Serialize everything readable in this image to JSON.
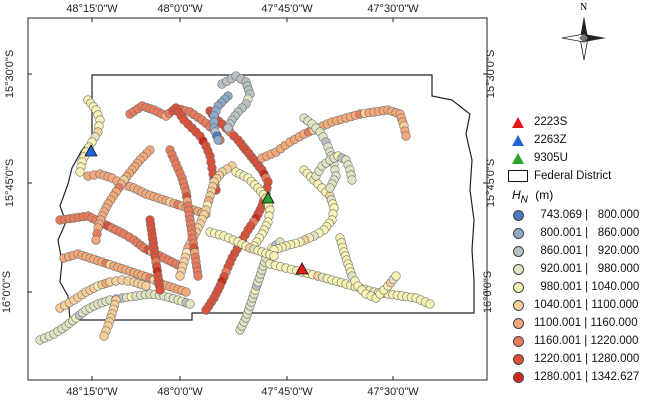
{
  "axes": {
    "top_labels": [
      "48°15'0\"W",
      "48°0'0\"W",
      "47°45'0\"W",
      "47°30'0\"W"
    ],
    "bottom_labels": [
      "48°15'0\"W",
      "48°0'0\"W",
      "47°45'0\"W",
      "47°30'0\"W"
    ],
    "left_labels": [
      "15°30'0\"S",
      "15°45'0\"S",
      "16°0'0\"S"
    ],
    "right_labels": [
      "15°30'0\"S",
      "15°45'0\"S",
      "16°0'0\"S"
    ]
  },
  "north_arrow": {
    "label": "N"
  },
  "stations": [
    {
      "id": "2223S",
      "color": "#e41a1c"
    },
    {
      "id": "2263Z",
      "color": "#2166d6"
    },
    {
      "id": "9305U",
      "color": "#2ca02c"
    }
  ],
  "district_label": "Federal District",
  "hn_title": "H",
  "hn_sub": "N",
  "hn_unit": "(m)",
  "classes": [
    {
      "lo": "743.069",
      "hi": "800.000",
      "color": "#4a78c2"
    },
    {
      "lo": "800.001",
      "hi": "860.000",
      "color": "#8fa9c8"
    },
    {
      "lo": "860.001",
      "hi": "920.000",
      "color": "#b7c2c6"
    },
    {
      "lo": "920.001",
      "hi": "980.000",
      "color": "#dfe3c4"
    },
    {
      "lo": "980.001",
      "hi": "1040.000",
      "color": "#f7f1b5"
    },
    {
      "lo": "1040.001",
      "hi": "1100.000",
      "color": "#f7cf9a"
    },
    {
      "lo": "1100.001",
      "hi": "1160.000",
      "color": "#f3a97a"
    },
    {
      "lo": "1160.001",
      "hi": "1220.000",
      "color": "#ea7c5d"
    },
    {
      "lo": "1220.001",
      "hi": "1280.000",
      "color": "#dd5038"
    },
    {
      "lo": "1280.001",
      "hi": "1342.627",
      "color": "#cc2a1e"
    }
  ]
}
